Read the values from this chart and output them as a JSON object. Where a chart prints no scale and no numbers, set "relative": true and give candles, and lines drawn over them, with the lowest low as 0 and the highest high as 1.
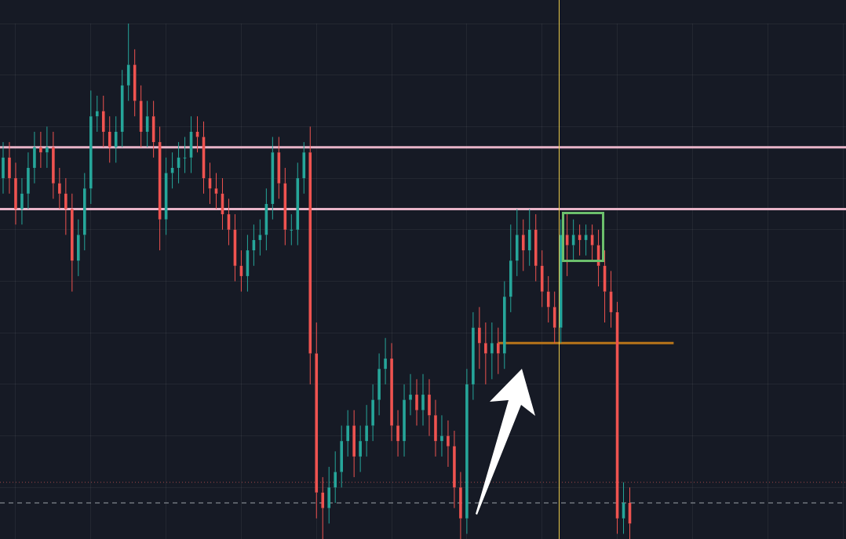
{
  "chart_data": {
    "type": "candlestick",
    "relative": true,
    "grid": true,
    "legend": false,
    "tick_labels": false,
    "categories": [
      null,
      null,
      null,
      null,
      null,
      null,
      null,
      null,
      null,
      null,
      null,
      null,
      null,
      null,
      null,
      null,
      null,
      null,
      null,
      null,
      null,
      null,
      null,
      null,
      null,
      null,
      null,
      null,
      null,
      null,
      null,
      null,
      null,
      null,
      null,
      null,
      null,
      null,
      null,
      null,
      null,
      null,
      null,
      null,
      null,
      null,
      null,
      null,
      null,
      null,
      null,
      null,
      null,
      null,
      null,
      null,
      null,
      null,
      null,
      null,
      null,
      null,
      null,
      null,
      null,
      null,
      null,
      null,
      null,
      null,
      null,
      null,
      null,
      null,
      null,
      null,
      null,
      null,
      null,
      null,
      null,
      null,
      null,
      null,
      null,
      null,
      null,
      null,
      null,
      null,
      null,
      null,
      null,
      null,
      null,
      null,
      null,
      null,
      null,
      null,
      null,
      null,
      null,
      null,
      null,
      null,
      null,
      null,
      null,
      null,
      null,
      null,
      null,
      null,
      null,
      null,
      null,
      null,
      null,
      null,
      null,
      null,
      null,
      null,
      null,
      null,
      null,
      null,
      null,
      null,
      null,
      null,
      null,
      null,
      null
    ],
    "ohlc": [
      [
        0.7,
        0.77,
        0.67,
        0.74
      ],
      [
        0.74,
        0.77,
        0.67,
        0.7
      ],
      [
        0.7,
        0.73,
        0.61,
        0.64
      ],
      [
        0.64,
        0.7,
        0.61,
        0.67
      ],
      [
        0.67,
        0.75,
        0.64,
        0.72
      ],
      [
        0.72,
        0.79,
        0.69,
        0.76
      ],
      [
        0.76,
        0.79,
        0.72,
        0.75
      ],
      [
        0.75,
        0.8,
        0.72,
        0.76
      ],
      [
        0.76,
        0.79,
        0.66,
        0.69
      ],
      [
        0.69,
        0.72,
        0.64,
        0.67
      ],
      [
        0.67,
        0.7,
        0.59,
        0.64
      ],
      [
        0.64,
        0.67,
        0.48,
        0.54
      ],
      [
        0.54,
        0.62,
        0.51,
        0.59
      ],
      [
        0.59,
        0.71,
        0.56,
        0.68
      ],
      [
        0.68,
        0.87,
        0.65,
        0.82
      ],
      [
        0.82,
        0.86,
        0.79,
        0.83
      ],
      [
        0.83,
        0.86,
        0.76,
        0.79
      ],
      [
        0.79,
        0.82,
        0.73,
        0.76
      ],
      [
        0.76,
        0.82,
        0.73,
        0.79
      ],
      [
        0.79,
        0.91,
        0.76,
        0.88
      ],
      [
        0.88,
        1.0,
        0.85,
        0.92
      ],
      [
        0.92,
        0.95,
        0.82,
        0.85
      ],
      [
        0.85,
        0.88,
        0.76,
        0.79
      ],
      [
        0.79,
        0.85,
        0.76,
        0.82
      ],
      [
        0.82,
        0.85,
        0.74,
        0.77
      ],
      [
        0.77,
        0.8,
        0.56,
        0.62
      ],
      [
        0.62,
        0.74,
        0.59,
        0.71
      ],
      [
        0.71,
        0.75,
        0.68,
        0.72
      ],
      [
        0.72,
        0.77,
        0.69,
        0.74
      ],
      [
        0.74,
        0.78,
        0.71,
        0.74
      ],
      [
        0.74,
        0.82,
        0.71,
        0.79
      ],
      [
        0.79,
        0.82,
        0.75,
        0.78
      ],
      [
        0.78,
        0.81,
        0.67,
        0.7
      ],
      [
        0.7,
        0.73,
        0.65,
        0.68
      ],
      [
        0.68,
        0.71,
        0.64,
        0.67
      ],
      [
        0.67,
        0.7,
        0.6,
        0.63
      ],
      [
        0.63,
        0.66,
        0.57,
        0.6
      ],
      [
        0.6,
        0.63,
        0.5,
        0.53
      ],
      [
        0.53,
        0.56,
        0.48,
        0.51
      ],
      [
        0.51,
        0.59,
        0.48,
        0.56
      ],
      [
        0.56,
        0.61,
        0.53,
        0.58
      ],
      [
        0.58,
        0.62,
        0.55,
        0.59
      ],
      [
        0.59,
        0.68,
        0.56,
        0.65
      ],
      [
        0.65,
        0.78,
        0.62,
        0.75
      ],
      [
        0.75,
        0.78,
        0.66,
        0.69
      ],
      [
        0.69,
        0.72,
        0.57,
        0.6
      ],
      [
        0.6,
        0.63,
        0.57,
        0.6
      ],
      [
        0.6,
        0.73,
        0.57,
        0.7
      ],
      [
        0.7,
        0.77,
        0.67,
        0.75
      ],
      [
        0.75,
        0.8,
        0.3,
        0.36
      ],
      [
        0.36,
        0.42,
        0.04,
        0.09
      ],
      [
        0.09,
        0.12,
        0.0,
        0.06
      ],
      [
        0.06,
        0.14,
        0.03,
        0.1
      ],
      [
        0.1,
        0.17,
        0.07,
        0.13
      ],
      [
        0.13,
        0.22,
        0.1,
        0.19
      ],
      [
        0.19,
        0.25,
        0.16,
        0.22
      ],
      [
        0.22,
        0.25,
        0.12,
        0.16
      ],
      [
        0.16,
        0.22,
        0.13,
        0.19
      ],
      [
        0.19,
        0.26,
        0.16,
        0.22
      ],
      [
        0.22,
        0.3,
        0.19,
        0.27
      ],
      [
        0.27,
        0.36,
        0.24,
        0.33
      ],
      [
        0.33,
        0.39,
        0.3,
        0.35
      ],
      [
        0.35,
        0.38,
        0.19,
        0.22
      ],
      [
        0.22,
        0.25,
        0.16,
        0.19
      ],
      [
        0.19,
        0.3,
        0.16,
        0.27
      ],
      [
        0.27,
        0.32,
        0.24,
        0.28
      ],
      [
        0.28,
        0.31,
        0.22,
        0.25
      ],
      [
        0.25,
        0.32,
        0.22,
        0.28
      ],
      [
        0.28,
        0.31,
        0.2,
        0.24
      ],
      [
        0.24,
        0.27,
        0.16,
        0.19
      ],
      [
        0.19,
        0.24,
        0.16,
        0.2
      ],
      [
        0.2,
        0.23,
        0.14,
        0.18
      ],
      [
        0.18,
        0.21,
        0.06,
        0.1
      ],
      [
        0.1,
        0.13,
        0.0,
        0.04
      ],
      [
        0.04,
        0.33,
        0.01,
        0.3
      ],
      [
        0.3,
        0.44,
        0.27,
        0.41
      ],
      [
        0.41,
        0.45,
        0.33,
        0.38
      ],
      [
        0.38,
        0.42,
        0.3,
        0.36
      ],
      [
        0.36,
        0.42,
        0.31,
        0.38
      ],
      [
        0.38,
        0.41,
        0.32,
        0.36
      ],
      [
        0.36,
        0.5,
        0.33,
        0.47
      ],
      [
        0.47,
        0.61,
        0.44,
        0.54
      ],
      [
        0.54,
        0.64,
        0.51,
        0.59
      ],
      [
        0.59,
        0.62,
        0.52,
        0.56
      ],
      [
        0.56,
        0.64,
        0.53,
        0.6
      ],
      [
        0.6,
        0.63,
        0.5,
        0.53
      ],
      [
        0.53,
        0.56,
        0.45,
        0.48
      ],
      [
        0.48,
        0.51,
        0.42,
        0.45
      ],
      [
        0.45,
        0.48,
        0.38,
        0.41
      ],
      [
        0.41,
        0.62,
        0.38,
        0.59
      ],
      [
        0.59,
        0.63,
        0.51,
        0.57
      ],
      [
        0.57,
        0.62,
        0.54,
        0.59
      ],
      [
        0.59,
        0.61,
        0.55,
        0.58
      ],
      [
        0.58,
        0.61,
        0.55,
        0.59
      ],
      [
        0.59,
        0.61,
        0.54,
        0.57
      ],
      [
        0.57,
        0.6,
        0.49,
        0.53
      ],
      [
        0.53,
        0.56,
        0.42,
        0.48
      ],
      [
        0.48,
        0.52,
        0.41,
        0.44
      ],
      [
        0.44,
        0.46,
        0.01,
        0.04
      ],
      [
        0.04,
        0.11,
        0.01,
        0.07
      ],
      [
        0.07,
        0.1,
        0.0,
        0.03
      ],
      null,
      null,
      null,
      null,
      null,
      null,
      null,
      null,
      null,
      null,
      null,
      null,
      null,
      null,
      null,
      null,
      null,
      null,
      null,
      null,
      null,
      null,
      null,
      null,
      null,
      null,
      null,
      null,
      null,
      null,
      null,
      null,
      null,
      null
    ],
    "series": [
      {
        "type": "line",
        "color": "#b8741a",
        "values": [
          null,
          null,
          null,
          null,
          null,
          null,
          null,
          null,
          null,
          null,
          null,
          null,
          null,
          null,
          null,
          null,
          null,
          null,
          null,
          null,
          null,
          null,
          null,
          null,
          null,
          null,
          null,
          null,
          null,
          null,
          null,
          null,
          null,
          null,
          null,
          null,
          null,
          null,
          null,
          null,
          null,
          null,
          null,
          null,
          null,
          null,
          null,
          null,
          null,
          null,
          null,
          null,
          null,
          null,
          null,
          null,
          null,
          null,
          null,
          null,
          null,
          null,
          null,
          null,
          null,
          null,
          null,
          null,
          null,
          null,
          null,
          null,
          null,
          null,
          null,
          null,
          null,
          null,
          null,
          0.38,
          0.38,
          0.38,
          0.38,
          0.38,
          0.38,
          0.38,
          0.38,
          0.38,
          0.38,
          0.38,
          0.38,
          0.38,
          0.38,
          0.38,
          0.38,
          0.38,
          0.38,
          0.38,
          0.38,
          0.38,
          0.38,
          0.38,
          0.38,
          0.38,
          0.38,
          0.38,
          0.38,
          0.38,
          null,
          null,
          null,
          null,
          null,
          null,
          null,
          null,
          null,
          null,
          null,
          null,
          null,
          null,
          null,
          null,
          null,
          null,
          null,
          null,
          null,
          null,
          null,
          null,
          null,
          null,
          null
        ]
      }
    ],
    "ref_lines": [
      {
        "axis": "y",
        "value": 0.76,
        "color": "#e8b4c8",
        "line_style": "solid"
      },
      {
        "axis": "y",
        "value": 0.64,
        "color": "#e8b4c8",
        "line_style": "solid"
      },
      {
        "axis": "y",
        "value": 0.11,
        "color": "#a04848",
        "line_style": "dotted"
      },
      {
        "axis": "y",
        "value": 0.07,
        "color": "#9aa0a8",
        "line_style": "dashed"
      }
    ]
  }
}
